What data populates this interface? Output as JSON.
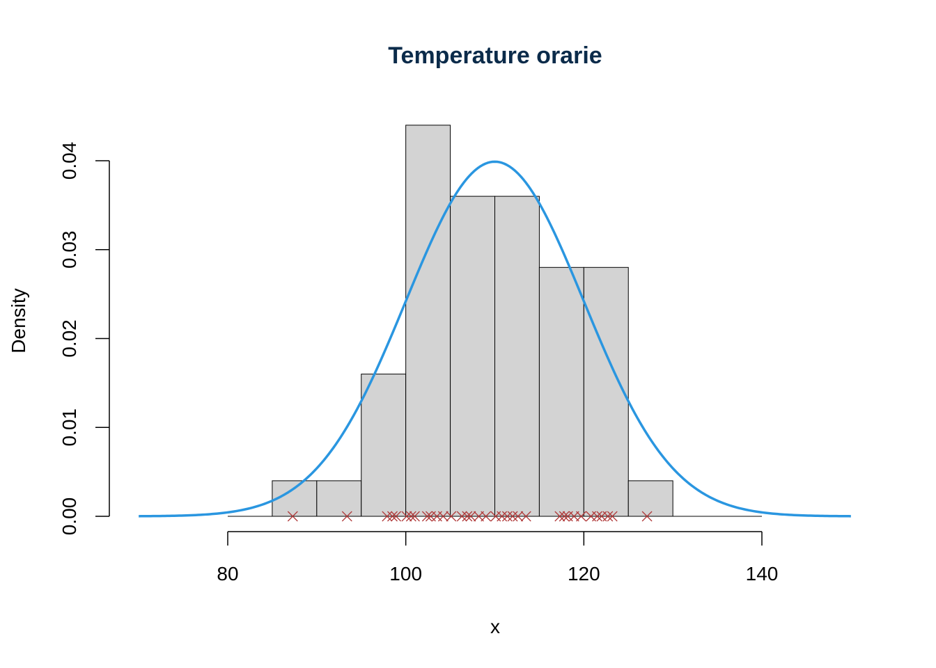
{
  "chart_data": {
    "type": "bar",
    "title": "Temperature orarie",
    "xlabel": "x",
    "ylabel": "Density",
    "xlim": [
      70,
      150
    ],
    "ylim": [
      0,
      0.044
    ],
    "x_ticks": [
      80,
      100,
      120,
      140
    ],
    "x_tick_labels": [
      "80",
      "100",
      "120",
      "140"
    ],
    "y_ticks": [
      0.0,
      0.01,
      0.02,
      0.03,
      0.04
    ],
    "y_tick_labels": [
      "0.00",
      "0.01",
      "0.02",
      "0.03",
      "0.04"
    ],
    "histogram": {
      "bin_edges": [
        85,
        90,
        95,
        100,
        105,
        110,
        115,
        120,
        125,
        130
      ],
      "densities": [
        0.004,
        0.004,
        0.016,
        0.044,
        0.036,
        0.036,
        0.028,
        0.028,
        0.004
      ],
      "fill": "#d3d3d3",
      "stroke": "#000000"
    },
    "density_curve": {
      "type": "line",
      "distribution": "normal",
      "mean": 110,
      "sd": 10,
      "x_range": [
        70,
        150
      ],
      "color": "#2a96e0"
    },
    "rug_points": {
      "type": "scatter",
      "marker": "x",
      "color": "#b03a3a",
      "x": [
        87.3,
        93.4,
        97.9,
        98.5,
        98.9,
        100.1,
        100.6,
        101.0,
        102.4,
        102.8,
        103.5,
        104.2,
        105.1,
        106.3,
        106.9,
        107.3,
        108.2,
        109.0,
        110.1,
        110.8,
        111.4,
        112.0,
        112.6,
        113.5,
        117.3,
        117.8,
        118.2,
        118.9,
        119.7,
        120.8,
        121.5,
        122.0,
        122.7,
        123.2,
        127.1
      ],
      "y": 0
    },
    "grid": false,
    "legend": "none",
    "colors": {
      "title": "#0b2b4a",
      "axis": "#000000"
    }
  }
}
